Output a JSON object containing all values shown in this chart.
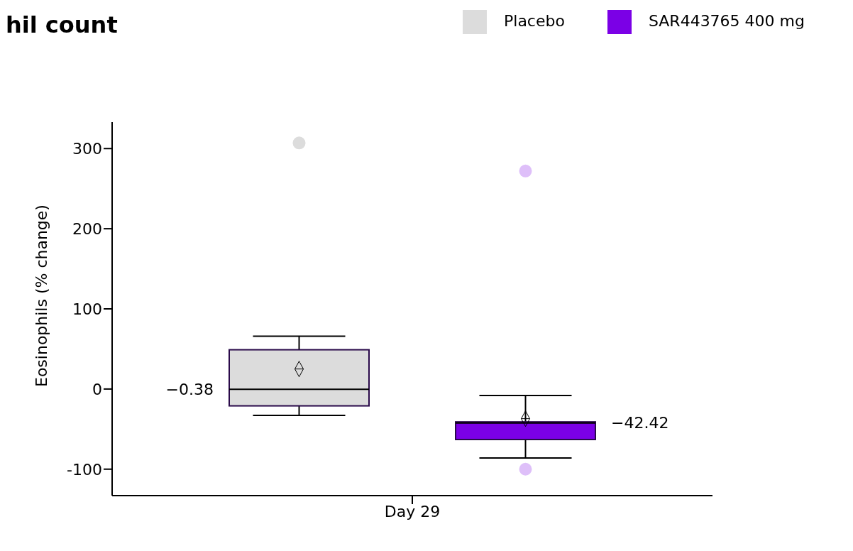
{
  "chart_data": {
    "type": "box",
    "title": "hil count",
    "ylabel": "Eosinophils (% change)",
    "categories": [
      "Day 29"
    ],
    "series": [
      {
        "name": "Placebo",
        "color": "#dcdcdc",
        "boxes": [
          {
            "low": -33,
            "q1": -21,
            "median": -0.38,
            "q3": 49,
            "high": 66,
            "mean": 25,
            "outliers": [
              307
            ]
          }
        ],
        "value_labels": [
          "−0.38"
        ]
      },
      {
        "name": "SAR443765 400 mg",
        "color": "#7b00e6",
        "boxes": [
          {
            "low": -86,
            "q1": -63,
            "median": -42.42,
            "q3": -41,
            "high": -8,
            "mean": -37,
            "outliers": [
              272,
              -100
            ]
          }
        ],
        "value_labels": [
          "−42.42"
        ]
      }
    ],
    "ylim": [
      -133,
      333
    ],
    "yticks": [
      -100,
      0,
      100,
      200,
      300
    ],
    "grid": false,
    "legend": "top right"
  }
}
